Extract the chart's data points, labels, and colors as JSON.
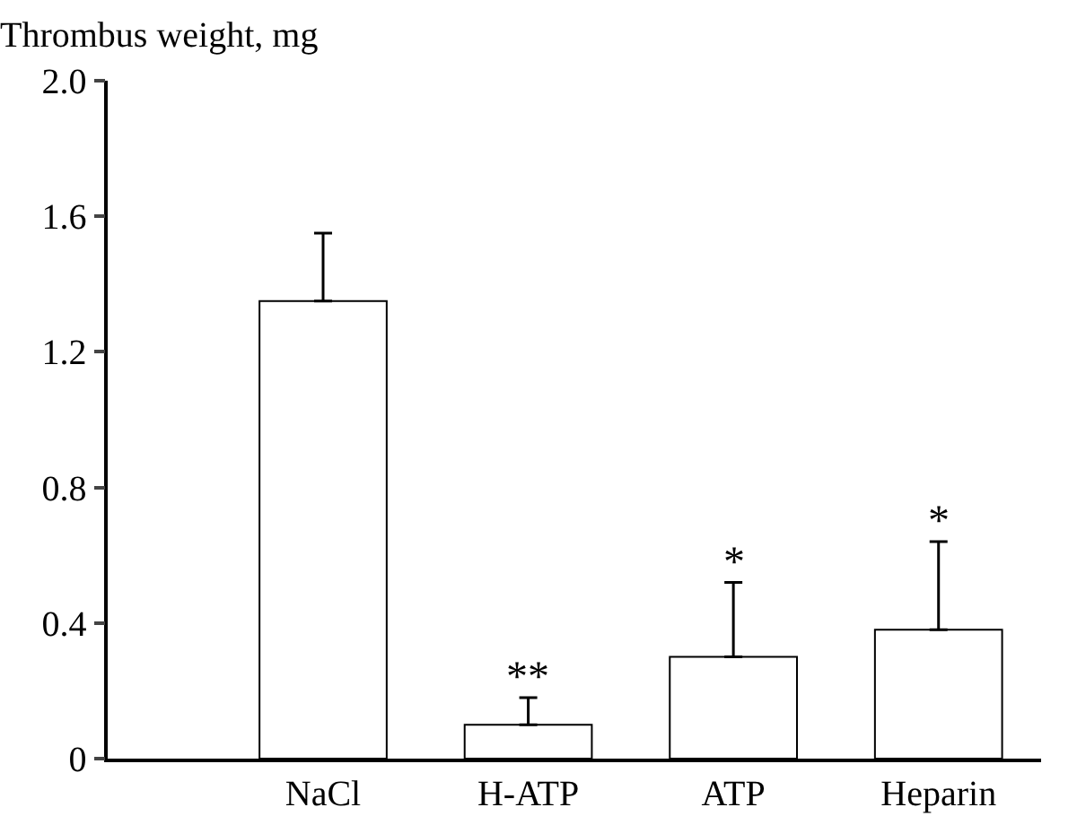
{
  "chart_data": {
    "type": "bar",
    "ylabel": "Thrombus weight, mg",
    "categories": [
      "NaCl",
      "H-ATP",
      "ATP",
      "Heparin"
    ],
    "values": [
      1.35,
      0.1,
      0.3,
      0.38
    ],
    "color": "#ffffff",
    "errors": [
      [
        1.35,
        1.55
      ],
      [
        0.1,
        0.18
      ],
      [
        0.3,
        0.52
      ],
      [
        0.38,
        0.64
      ]
    ],
    "ylim": [
      0,
      2.0
    ],
    "yticks": [
      0,
      0.4,
      0.8,
      1.2,
      1.6,
      {
        "value": 2.0,
        "label": "2.0"
      }
    ],
    "annotations": [
      {
        "text": "**",
        "x": "H-ATP",
        "y": 0.18
      },
      {
        "text": "*",
        "x": "ATP",
        "y": 0.52
      },
      {
        "text": "*",
        "x": "Heparin",
        "y": 0.64
      }
    ],
    "grid": false,
    "legend": false
  }
}
